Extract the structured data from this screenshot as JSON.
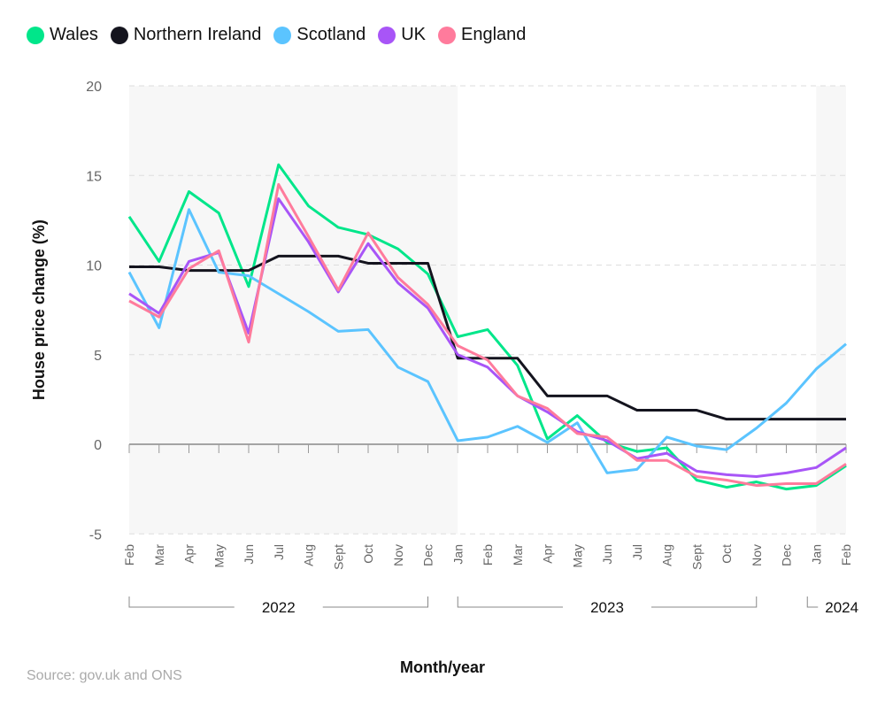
{
  "chart_data": {
    "type": "line",
    "xlabel": "Month/year",
    "ylabel": "House price change (%)",
    "ylim": [
      -5,
      20
    ],
    "yticks": [
      20,
      15,
      10,
      5,
      0,
      -5
    ],
    "grid": true,
    "legend_position": "top-left",
    "x": [
      "Feb",
      "Mar",
      "Apr",
      "May",
      "Jun",
      "Jul",
      "Aug",
      "Sept",
      "Oct",
      "Nov",
      "Dec",
      "Jan",
      "Feb",
      "Mar",
      "Apr",
      "May",
      "Jun",
      "Jul",
      "Aug",
      "Sept",
      "Oct",
      "Nov",
      "Dec",
      "Jan",
      "Feb"
    ],
    "years": [
      {
        "label": "2022",
        "from": 0,
        "to": 10
      },
      {
        "label": "2023",
        "from": 11,
        "to": 21
      },
      {
        "label": "2024",
        "from": 23,
        "to": 24
      }
    ],
    "series": [
      {
        "name": "Wales",
        "color": "#00e68a",
        "values": [
          12.7,
          10.2,
          14.1,
          12.9,
          8.8,
          15.6,
          13.3,
          12.1,
          11.7,
          10.9,
          9.5,
          6.0,
          6.4,
          4.4,
          0.3,
          1.6,
          0.1,
          -0.4,
          -0.2,
          -2.0,
          -2.4,
          -2.1,
          -2.5,
          -2.3,
          -1.2
        ]
      },
      {
        "name": "Northern Ireland",
        "color": "#14141e",
        "values": [
          9.9,
          9.9,
          9.7,
          9.7,
          9.7,
          10.5,
          10.5,
          10.5,
          10.1,
          10.1,
          10.1,
          4.8,
          4.8,
          4.8,
          2.7,
          2.7,
          2.7,
          1.9,
          1.9,
          1.9,
          1.4,
          1.4,
          1.4,
          1.4,
          1.4
        ]
      },
      {
        "name": "Scotland",
        "color": "#5bc4ff",
        "values": [
          9.6,
          6.5,
          13.1,
          9.6,
          9.4,
          8.4,
          7.4,
          6.3,
          6.4,
          4.3,
          3.5,
          0.2,
          0.4,
          1.0,
          0.1,
          1.2,
          -1.6,
          -1.4,
          0.4,
          -0.1,
          -0.3,
          0.9,
          2.3,
          4.2,
          5.6
        ]
      },
      {
        "name": "UK",
        "color": "#a855f7",
        "values": [
          8.4,
          7.3,
          10.2,
          10.7,
          6.2,
          13.7,
          11.3,
          8.5,
          11.2,
          9.0,
          7.6,
          5.0,
          4.3,
          2.7,
          1.8,
          0.7,
          0.2,
          -0.8,
          -0.5,
          -1.5,
          -1.7,
          -1.8,
          -1.6,
          -1.3,
          -0.2
        ]
      },
      {
        "name": "England",
        "color": "#ff7b9c",
        "values": [
          8.0,
          7.1,
          9.8,
          10.8,
          5.7,
          14.5,
          11.6,
          8.6,
          11.8,
          9.3,
          7.8,
          5.5,
          4.7,
          2.7,
          2.0,
          0.6,
          0.4,
          -0.9,
          -0.9,
          -1.8,
          -2.0,
          -2.3,
          -2.2,
          -2.2,
          -1.1
        ]
      }
    ]
  },
  "source": "Source: gov.uk and ONS"
}
